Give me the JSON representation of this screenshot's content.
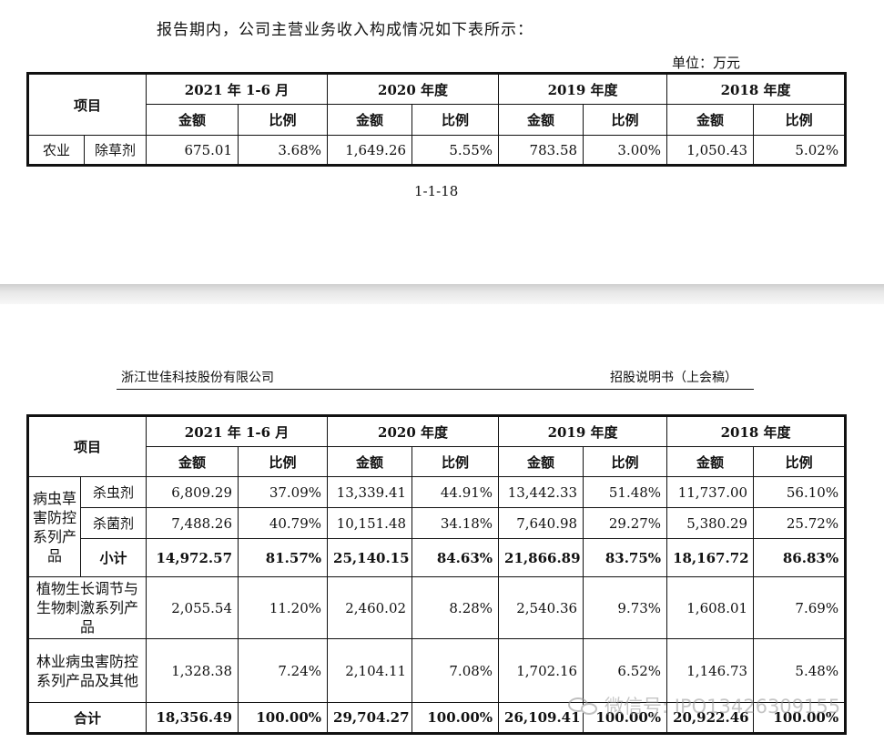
{
  "intro_text": "报告期内，公司主营业务收入构成情况如下表所示：",
  "unit_label": "单位：万元",
  "page_number": "1-1-18",
  "next_page": {
    "company": "浙江世佳科技股份有限公司",
    "document": "招股说明书（上会稿）"
  },
  "table_headers": {
    "item": "项目",
    "periods": [
      "2021 年 1-6 月",
      "2020 年度",
      "2019 年度",
      "2018 年度"
    ],
    "amount": "金额",
    "ratio": "比例"
  },
  "table1": {
    "rows": [
      {
        "category": "农业",
        "item": "除草剂",
        "values": [
          "675.01",
          "3.68%",
          "1,649.26",
          "5.55%",
          "783.58",
          "3.00%",
          "1,050.43",
          "5.02%"
        ]
      }
    ]
  },
  "table2": {
    "group_label": "病虫草害防控系列产品",
    "group_rows": [
      {
        "item": "杀虫剂",
        "values": [
          "6,809.29",
          "37.09%",
          "13,339.41",
          "44.91%",
          "13,442.33",
          "51.48%",
          "11,737.00",
          "56.10%"
        ]
      },
      {
        "item": "杀菌剂",
        "values": [
          "7,488.26",
          "40.79%",
          "10,151.48",
          "34.18%",
          "7,640.98",
          "29.27%",
          "5,380.29",
          "25.72%"
        ]
      },
      {
        "item": "小计",
        "values": [
          "14,972.57",
          "81.57%",
          "25,140.15",
          "84.63%",
          "21,866.89",
          "83.75%",
          "18,167.72",
          "86.83%"
        ]
      }
    ],
    "other_rows": [
      {
        "item": "植物生长调节与生物刺激系列产品",
        "values": [
          "2,055.54",
          "11.20%",
          "2,460.02",
          "8.28%",
          "2,540.36",
          "9.73%",
          "1,608.01",
          "7.69%"
        ]
      },
      {
        "item": "林业病虫害防控系列产品及其他",
        "values": [
          "1,328.38",
          "7.24%",
          "2,104.11",
          "7.08%",
          "1,702.16",
          "6.52%",
          "1,146.73",
          "5.48%"
        ]
      }
    ],
    "total_row": {
      "item": "合计",
      "values": [
        "18,356.49",
        "100.00%",
        "29,704.27",
        "100.00%",
        "26,109.41",
        "100.00%",
        "20,922.46",
        "100.00%"
      ]
    }
  },
  "watermark": {
    "icon": "wechat-icon",
    "text": "微信号: IPO13426309155"
  }
}
